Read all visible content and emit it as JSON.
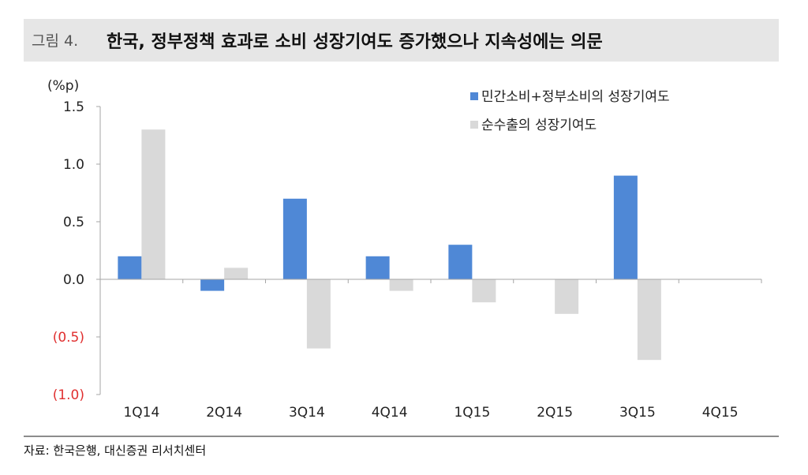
{
  "header": {
    "figure_label": "그림 4.",
    "title": "한국, 정부정책 효과로 소비 성장기여도 증가했으나 지속성에는 의문"
  },
  "footer": {
    "source": "자료: 한국은행, 대신증권 리서치센터"
  },
  "chart_data": {
    "type": "bar",
    "y_unit": "(%p)",
    "categories": [
      "1Q14",
      "2Q14",
      "3Q14",
      "4Q14",
      "1Q15",
      "2Q15",
      "3Q15",
      "4Q15"
    ],
    "series": [
      {
        "name": "민간소비+정부소비의 성장기여도",
        "color": "#4f88d6",
        "values": [
          0.2,
          -0.1,
          0.7,
          0.2,
          0.3,
          0.0,
          0.9,
          0.0
        ]
      },
      {
        "name": "순수출의 성장기여도",
        "color": "#d9d9d9",
        "values": [
          1.3,
          0.1,
          -0.6,
          -0.1,
          -0.2,
          -0.3,
          -0.7,
          0.0
        ]
      }
    ],
    "ylim": [
      -1.0,
      1.5
    ],
    "y_ticks": [
      {
        "value": 1.5,
        "label": "1.5"
      },
      {
        "value": 1.0,
        "label": "1.0"
      },
      {
        "value": 0.5,
        "label": "0.5"
      },
      {
        "value": 0.0,
        "label": "0.0"
      },
      {
        "value": -0.5,
        "label": "(0.5)"
      },
      {
        "value": -1.0,
        "label": "(1.0)"
      }
    ],
    "negative_label_color": "#e03030",
    "grid": false,
    "legend_position": "top-right"
  }
}
